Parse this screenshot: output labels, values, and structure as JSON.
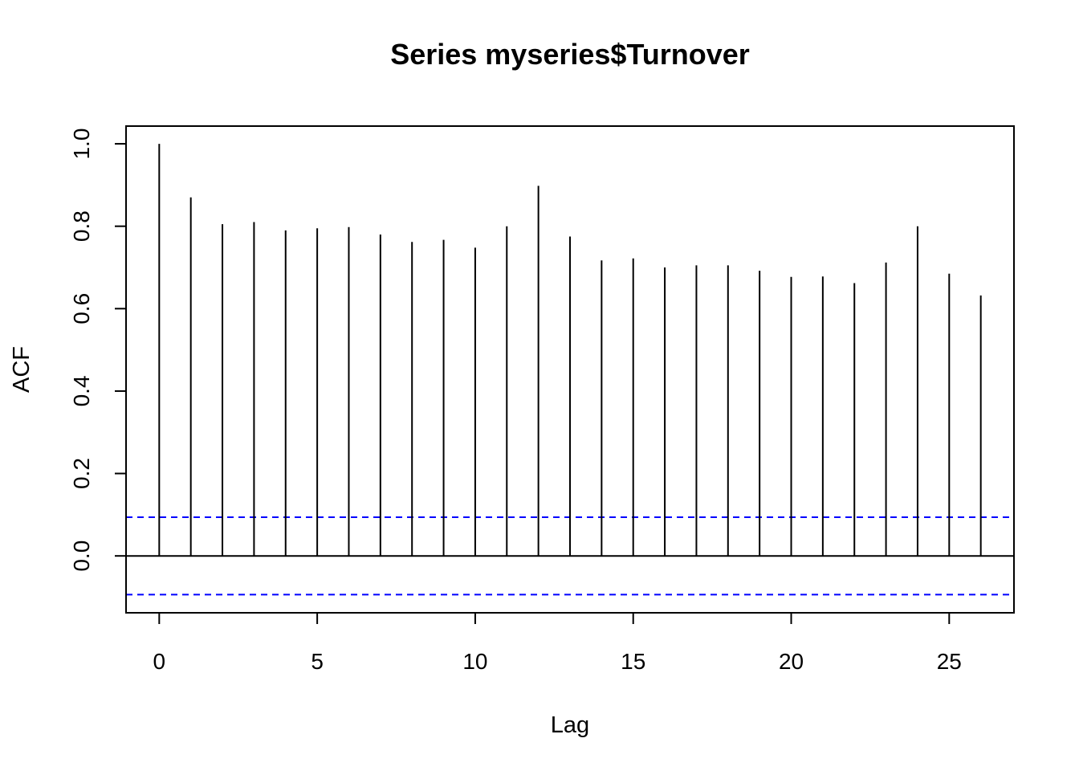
{
  "chart_data": {
    "type": "bar",
    "title": "Series  myseries$Turnover",
    "xlabel": "Lag",
    "ylabel": "ACF",
    "xlim": [
      -1.05,
      27.05
    ],
    "ylim": [
      -0.138,
      1.043
    ],
    "x_ticks": [
      0,
      5,
      10,
      15,
      20,
      25
    ],
    "y_ticks": [
      0.0,
      0.2,
      0.4,
      0.6,
      0.8,
      1.0
    ],
    "y_tick_labels": [
      "0.0",
      "0.2",
      "0.4",
      "0.6",
      "0.8",
      "1.0"
    ],
    "grid": false,
    "lags": [
      0,
      1,
      2,
      3,
      4,
      5,
      6,
      7,
      8,
      9,
      10,
      11,
      12,
      13,
      14,
      15,
      16,
      17,
      18,
      19,
      20,
      21,
      22,
      23,
      24,
      25,
      26
    ],
    "acf": [
      1.0,
      0.87,
      0.805,
      0.81,
      0.79,
      0.795,
      0.798,
      0.78,
      0.762,
      0.767,
      0.748,
      0.8,
      0.898,
      0.775,
      0.717,
      0.722,
      0.7,
      0.705,
      0.705,
      0.692,
      0.677,
      0.678,
      0.662,
      0.712,
      0.8,
      0.685,
      0.632
    ],
    "confidence_band": 0.094,
    "colors": {
      "bars": "#000000",
      "confidence": "#0000ff",
      "zero_line": "#000000"
    }
  }
}
